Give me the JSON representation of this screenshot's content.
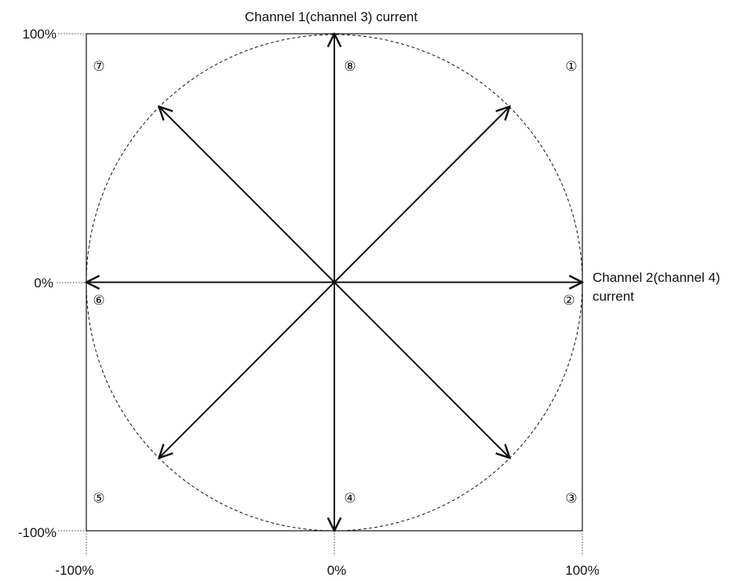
{
  "chart_data": {
    "type": "vector-diagram",
    "ylabel": "Channel 1(channel 3) current",
    "xlabel_lines": [
      "Channel 2(channel 4)",
      "current"
    ],
    "xlim": [
      -100,
      100
    ],
    "ylim": [
      -100,
      100
    ],
    "x_ticks": [
      "-100%",
      "0%",
      "100%"
    ],
    "y_ticks": [
      "100%",
      "0%",
      "-100%"
    ],
    "vectors": [
      {
        "label": "①",
        "x": 70.7,
        "y": 70.7
      },
      {
        "label": "②",
        "x": 100,
        "y": 0
      },
      {
        "label": "③",
        "x": 70.7,
        "y": -70.7
      },
      {
        "label": "④",
        "x": 0,
        "y": -100
      },
      {
        "label": "⑤",
        "x": -70.7,
        "y": -70.7
      },
      {
        "label": "⑥",
        "x": -100,
        "y": 0
      },
      {
        "label": "⑦",
        "x": -70.7,
        "y": 70.7
      },
      {
        "label": "⑧",
        "x": 0,
        "y": 100
      }
    ],
    "circle_radius": 100,
    "circle_style": "dashed",
    "colors": {
      "line": "#111111",
      "background": "#ffffff"
    }
  }
}
